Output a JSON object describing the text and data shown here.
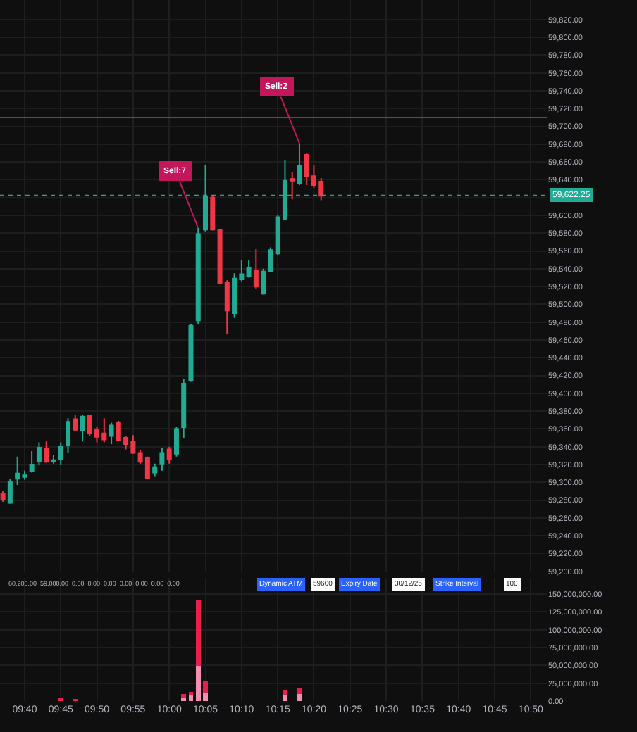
{
  "chart_data": [
    {
      "type": "candlestick",
      "x": [
        9.6167,
        9.6333,
        9.65,
        9.6667,
        9.6833,
        9.7,
        9.7167,
        9.7333,
        9.75,
        9.7667,
        9.7833,
        9.8,
        9.8167,
        9.8333,
        9.85,
        9.8667,
        9.8833,
        9.9,
        9.9167,
        9.9333,
        9.95,
        9.9667,
        9.9833,
        10.0,
        10.0167,
        10.0333,
        10.05,
        10.0667,
        10.0833,
        10.1,
        10.1167,
        10.1333,
        10.15,
        10.1667,
        10.1833,
        10.2,
        10.2167,
        10.2333,
        10.25,
        10.2667,
        10.2833,
        10.3,
        10.3167,
        10.3333,
        10.35
      ],
      "ohlc": [
        [
          59287,
          59290,
          59278,
          59281
        ],
        [
          59277,
          59304,
          59276,
          59301
        ],
        [
          59304,
          59329,
          59297,
          59310
        ],
        [
          59306,
          59313,
          59303,
          59308
        ],
        [
          59312,
          59335,
          59311,
          59320
        ],
        [
          59324,
          59345,
          59319,
          59339
        ],
        [
          59338,
          59346,
          59322,
          59323
        ],
        [
          59324,
          59331,
          59321,
          59325
        ],
        [
          59326,
          59345,
          59320,
          59340
        ],
        [
          59342,
          59372,
          59333,
          59368
        ],
        [
          59371,
          59376,
          59358,
          59359
        ],
        [
          59358,
          59376,
          59346,
          59374
        ],
        [
          59375,
          59376,
          59352,
          59355
        ],
        [
          59359,
          59363,
          59345,
          59351
        ],
        [
          59355,
          59372,
          59345,
          59348
        ],
        [
          59352,
          59367,
          59343,
          59364
        ],
        [
          59367,
          59369,
          59346,
          59347
        ],
        [
          59350,
          59352,
          59337,
          59343
        ],
        [
          59346,
          59353,
          59332,
          59333
        ],
        [
          59333,
          59336,
          59321,
          59323
        ],
        [
          59328,
          59329,
          59305,
          59305
        ],
        [
          59311,
          59321,
          59307,
          59317
        ],
        [
          59321,
          59339,
          59313,
          59333
        ],
        [
          59337,
          59340,
          59321,
          59326
        ],
        [
          59332,
          59362,
          59329,
          59360
        ],
        [
          59362,
          59416,
          59350,
          59411
        ],
        [
          59415,
          59478,
          59413,
          59476
        ],
        [
          59482,
          59586,
          59478,
          59579
        ],
        [
          59584,
          59657,
          59582,
          59621
        ],
        [
          59620,
          59622,
          59583,
          59584
        ],
        [
          59584,
          59585,
          59523,
          59524
        ],
        [
          59524,
          59527,
          59467,
          59493
        ],
        [
          59490,
          59535,
          59485,
          59529
        ],
        [
          59528,
          59550,
          59526,
          59534
        ],
        [
          59532,
          59550,
          59530,
          59541
        ],
        [
          59538,
          59562,
          59517,
          59520
        ],
        [
          59512,
          59540,
          59511,
          59537
        ],
        [
          59537,
          59564,
          59536,
          59561
        ],
        [
          59557,
          59600,
          59555,
          59598
        ],
        [
          59596,
          59662,
          59595,
          59639
        ],
        [
          59641,
          59649,
          59618,
          59639
        ],
        [
          59636,
          59681,
          59634,
          59656
        ],
        [
          59668,
          59670,
          59634,
          59644
        ],
        [
          59644,
          59656,
          59631,
          59634
        ],
        [
          59638,
          59642,
          59617,
          59622
        ]
      ],
      "colors": [
        "#f23645",
        "#22ab94",
        "#22ab94",
        "#22ab94",
        "#22ab94",
        "#22ab94",
        "#f23645",
        "#22ab94",
        "#22ab94",
        "#22ab94",
        "#f23645",
        "#22ab94",
        "#f23645",
        "#f23645",
        "#f23645",
        "#22ab94",
        "#f23645",
        "#f23645",
        "#f23645",
        "#f23645",
        "#f23645",
        "#22ab94",
        "#22ab94",
        "#f23645",
        "#22ab94",
        "#22ab94",
        "#22ab94",
        "#22ab94",
        "#22ab94",
        "#f23645",
        "#f23645",
        "#f23645",
        "#22ab94",
        "#22ab94",
        "#22ab94",
        "#f23645",
        "#22ab94",
        "#22ab94",
        "#22ab94",
        "#22ab94",
        "#f23645",
        "#22ab94",
        "#f23645",
        "#f23645",
        "#f23645"
      ],
      "xlim": [
        9.61,
        10.87
      ],
      "xticks": [
        {
          "value": 9.6667,
          "label": null
        },
        {
          "value": 9.75,
          "label": null
        },
        {
          "value": 9.8333,
          "label": null
        },
        {
          "value": 9.9167,
          "label": null
        },
        {
          "value": 10.0,
          "label": null
        },
        {
          "value": 10.0833,
          "label": null
        },
        {
          "value": 10.1667,
          "label": null
        },
        {
          "value": 10.25,
          "label": null
        },
        {
          "value": 10.3333,
          "label": null
        },
        {
          "value": 10.4167,
          "label": null
        },
        {
          "value": 10.5,
          "label": null
        },
        {
          "value": 10.5833,
          "label": null
        },
        {
          "value": 10.6667,
          "label": null
        },
        {
          "value": 10.75,
          "label": null
        },
        {
          "value": 10.8333,
          "label": null
        }
      ],
      "ylim": [
        59200,
        59842
      ],
      "yticks": [
        {
          "value": 59200,
          "label": "59,200.00"
        },
        {
          "value": 59220,
          "label": "59,220.00"
        },
        {
          "value": 59240,
          "label": "59,240.00"
        },
        {
          "value": 59260,
          "label": "59,260.00"
        },
        {
          "value": 59280,
          "label": "59,280.00"
        },
        {
          "value": 59300,
          "label": "59,300.00"
        },
        {
          "value": 59320,
          "label": "59,320.00"
        },
        {
          "value": 59340,
          "label": "59,340.00"
        },
        {
          "value": 59360,
          "label": "59,360.00"
        },
        {
          "value": 59380,
          "label": "59,380.00"
        },
        {
          "value": 59400,
          "label": "59,400.00"
        },
        {
          "value": 59420,
          "label": "59,420.00"
        },
        {
          "value": 59440,
          "label": "59,440.00"
        },
        {
          "value": 59460,
          "label": "59,460.00"
        },
        {
          "value": 59480,
          "label": "59,480.00"
        },
        {
          "value": 59500,
          "label": "59,500.00"
        },
        {
          "value": 59520,
          "label": "59,520.00"
        },
        {
          "value": 59540,
          "label": "59,540.00"
        },
        {
          "value": 59560,
          "label": "59,560.00"
        },
        {
          "value": 59580,
          "label": "59,580.00"
        },
        {
          "value": 59600,
          "label": "59,600.00"
        },
        {
          "value": 59620,
          "label": null
        },
        {
          "value": 59640,
          "label": "59,640.00"
        },
        {
          "value": 59660,
          "label": "59,660.00"
        },
        {
          "value": 59680,
          "label": "59,680.00"
        },
        {
          "value": 59700,
          "label": "59,700.00"
        },
        {
          "value": 59720,
          "label": "59,720.00"
        },
        {
          "value": 59740,
          "label": "59,740.00"
        },
        {
          "value": 59760,
          "label": "59,760.00"
        },
        {
          "value": 59780,
          "label": "59,780.00"
        },
        {
          "value": 59800,
          "label": "59,800.00"
        },
        {
          "value": 59820,
          "label": "59,820.00"
        }
      ],
      "ref_lines": [
        {
          "axis": "y",
          "value": 59710,
          "color": "#c2185b",
          "line_style": "solid"
        },
        {
          "axis": "y",
          "value": 59622.25,
          "label": "59,622.25",
          "color": "#22ab94",
          "line_style": "dotted"
        }
      ],
      "annotations": [
        {
          "text": "Sell:7",
          "x": 10.0667,
          "y": 59586
        },
        {
          "text": "Sell:2",
          "x": 10.3,
          "y": 59681
        }
      ],
      "grid": true,
      "tick_labels": "y"
    },
    {
      "type": "bar",
      "stacked": true,
      "x": [
        9.75,
        9.7833,
        10.0333,
        10.05,
        10.0667,
        10.0833,
        10.2667,
        10.3
      ],
      "series": [
        {
          "color": "#f48fb1",
          "values": [
            null,
            null,
            5000000,
            8000000,
            49000000,
            12000000,
            8000000,
            10000000
          ]
        },
        {
          "color": "#e91e4f",
          "values": [
            5000000,
            2000000,
            5000000,
            5000000,
            92000000,
            16000000,
            8000000,
            8000000
          ]
        }
      ],
      "xlim": [
        9.61,
        10.87
      ],
      "xticks": [
        {
          "value": 9.6667,
          "label": "09:40"
        },
        {
          "value": 9.75,
          "label": "09:45"
        },
        {
          "value": 9.8333,
          "label": "09:50"
        },
        {
          "value": 9.9167,
          "label": "09:55"
        },
        {
          "value": 10.0,
          "label": "10:00"
        },
        {
          "value": 10.0833,
          "label": "10:05"
        },
        {
          "value": 10.1667,
          "label": "10:10"
        },
        {
          "value": 10.25,
          "label": "10:15"
        },
        {
          "value": 10.3333,
          "label": "10:20"
        },
        {
          "value": 10.4167,
          "label": "10:25"
        },
        {
          "value": 10.5,
          "label": "10:30"
        },
        {
          "value": 10.5833,
          "label": "10:35"
        },
        {
          "value": 10.6667,
          "label": "10:40"
        },
        {
          "value": 10.75,
          "label": "10:45"
        },
        {
          "value": 10.8333,
          "label": "10:50"
        }
      ],
      "ylim": [
        0,
        173000000
      ],
      "yticks": [
        {
          "value": 0,
          "label": "0.00"
        },
        {
          "value": 25000000,
          "label": "25,000,000.00"
        },
        {
          "value": 50000000,
          "label": "50,000,000.00"
        },
        {
          "value": 75000000,
          "label": "75,000,000.00"
        },
        {
          "value": 100000000,
          "label": "100,000,000.00"
        },
        {
          "value": 125000000,
          "label": "125,000,000.00"
        },
        {
          "value": 150000000,
          "label": "150,000,000.00"
        }
      ],
      "annotations": [
        "Dynamic ATM",
        "59600",
        "Expiry Date",
        "30/12/25",
        "Strike Interval",
        "100",
        "60,200.00  59,000.00  0.00  0.00  0.00  0.00  0.00  0.00  0.00"
      ],
      "grid": true
    }
  ]
}
